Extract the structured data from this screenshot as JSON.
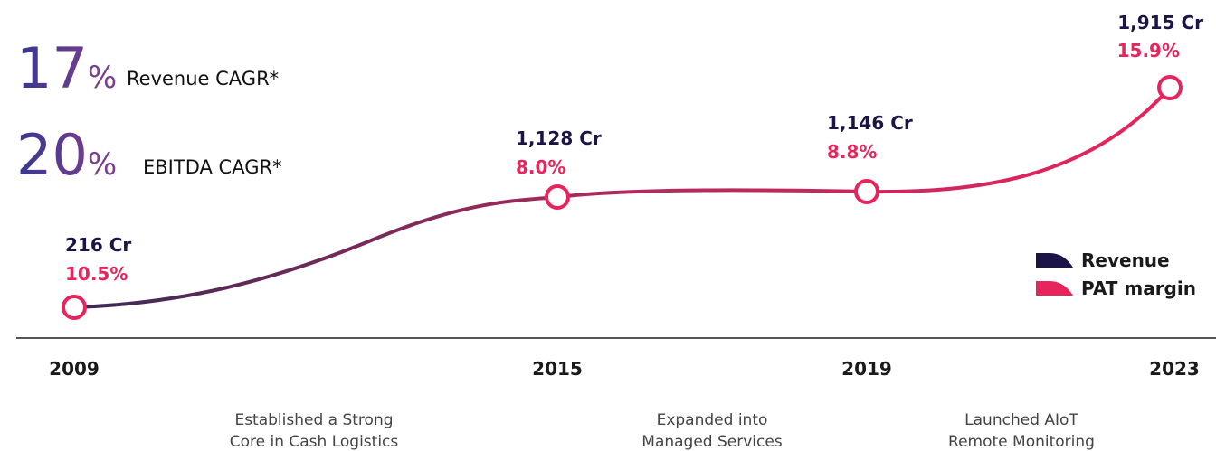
{
  "stats": [
    {
      "value": "17",
      "unit": "%",
      "label": "Revenue CAGR*"
    },
    {
      "value": "20",
      "unit": "%",
      "label": "EBITDA CAGR*"
    }
  ],
  "milestones": [
    {
      "year": "2009",
      "revenue": "216 Cr",
      "margin": "10.5%"
    },
    {
      "year": "2015",
      "revenue": "1,128 Cr",
      "margin": "8.0%"
    },
    {
      "year": "2019",
      "revenue": "1,146 Cr",
      "margin": "8.8%"
    },
    {
      "year": "2023",
      "revenue": "1,915 Cr",
      "margin": "15.9%"
    }
  ],
  "notes": [
    [
      "Established a Strong",
      "Core in Cash Logistics"
    ],
    [
      "Expanded into",
      "Managed Services"
    ],
    [
      "Launched AIoT",
      "Remote Monitoring"
    ]
  ],
  "legend": [
    "Revenue",
    "PAT margin"
  ]
}
